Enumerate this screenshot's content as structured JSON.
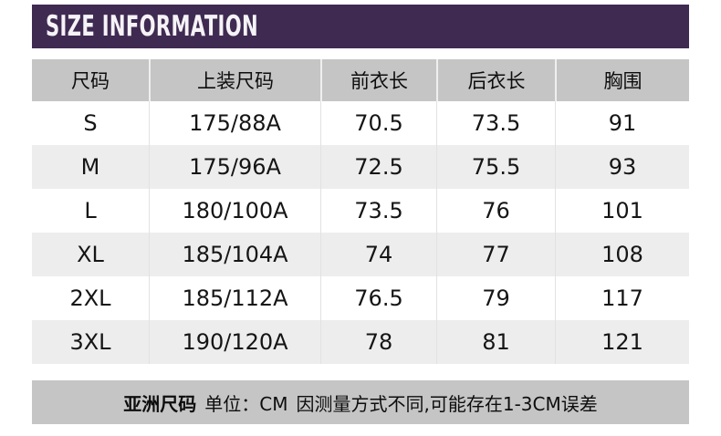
{
  "header": {
    "title": "SIZE INFORMATION"
  },
  "table": {
    "columns": [
      "尺码",
      "上装尺码",
      "前衣长",
      "后衣长",
      "胸围"
    ],
    "rows": [
      [
        "S",
        "175/88A",
        "70.5",
        "73.5",
        "91"
      ],
      [
        "M",
        "175/96A",
        "72.5",
        "75.5",
        "93"
      ],
      [
        "L",
        "180/100A",
        "73.5",
        "76",
        "101"
      ],
      [
        "XL",
        "185/104A",
        "74",
        "77",
        "108"
      ],
      [
        "2XL",
        "185/112A",
        "76.5",
        "79",
        "117"
      ],
      [
        "3XL",
        "190/120A",
        "78",
        "81",
        "121"
      ]
    ]
  },
  "footer": {
    "region_label": "亚洲尺码",
    "unit_note": "单位：CM",
    "tolerance_note": "因测量方式不同,可能存在1-3CM误差"
  },
  "colors": {
    "accent_purple": "#3f2a52",
    "band_gray": "#c5c5c5",
    "alt_row_gray": "#ededee",
    "text": "#151515"
  }
}
